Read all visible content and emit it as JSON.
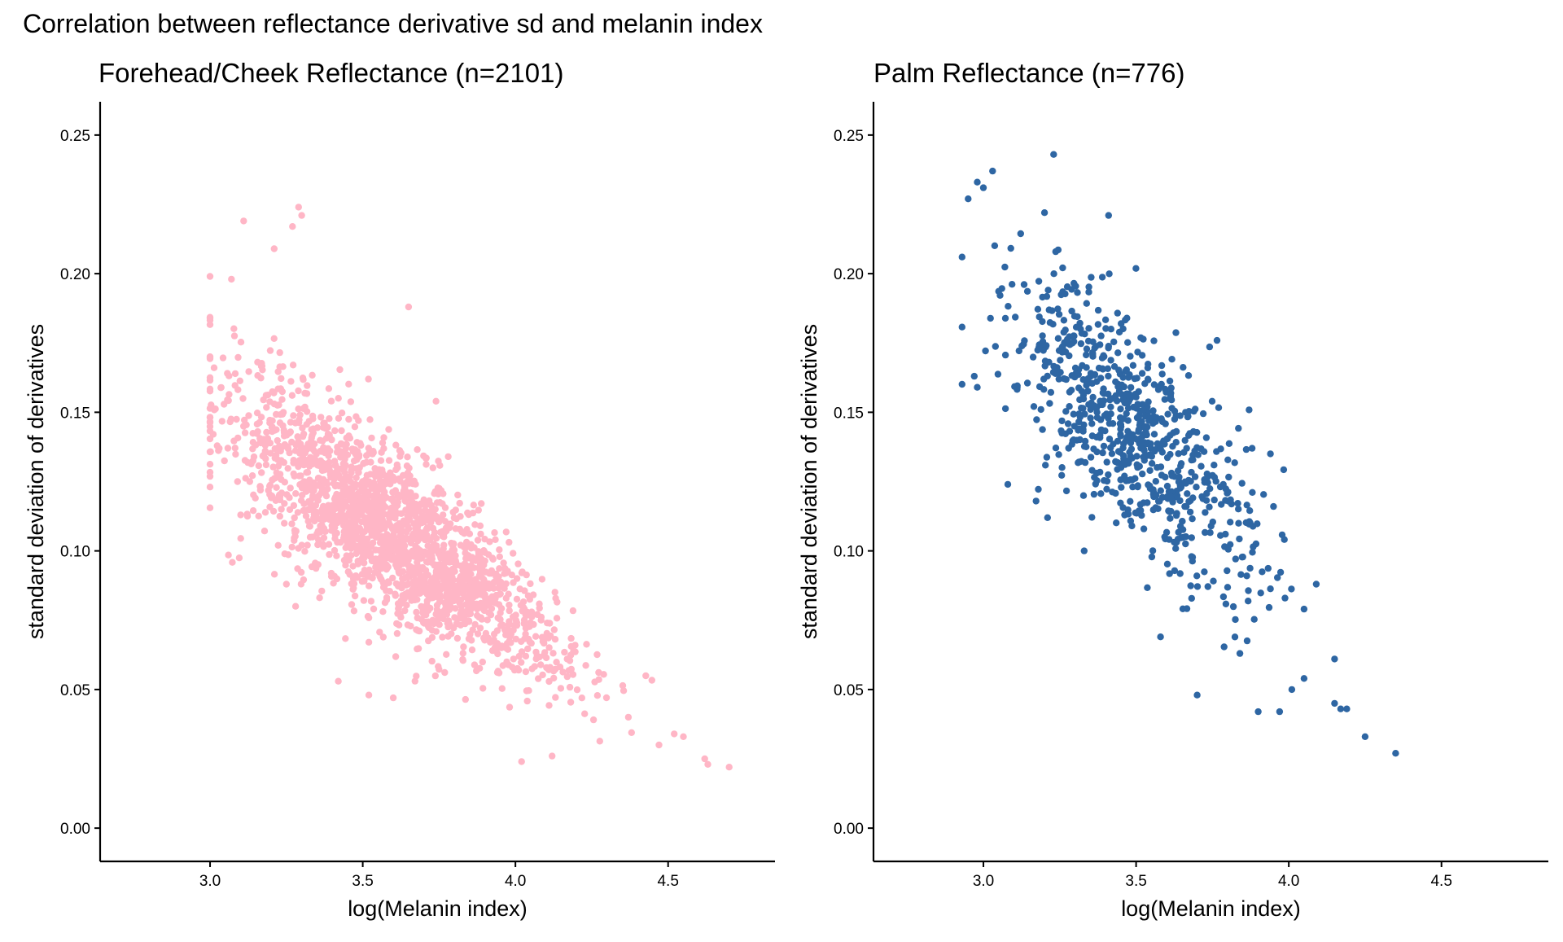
{
  "figure": {
    "title": "Correlation between reflectance derivative sd and melanin index"
  },
  "colors": {
    "forehead_points": "#ffb6c6",
    "palm_points": "#2e66a3",
    "axis": "#000000"
  },
  "chart_data": [
    {
      "type": "scatter",
      "title": "Forehead/Cheek Reflectance (n=2101)",
      "xlabel": "log(Melanin index)",
      "ylabel": "standard deviation of derivatives",
      "xlim": [
        2.64,
        4.85
      ],
      "ylim": [
        -0.012,
        0.262
      ],
      "xticks": [
        "3.0",
        "3.5",
        "4.0",
        "4.5"
      ],
      "yticks": [
        "0.00",
        "0.05",
        "0.10",
        "0.15",
        "0.20",
        "0.25"
      ],
      "grid": false,
      "n": 2101,
      "trend": {
        "slope": -0.078,
        "intercept": 0.387,
        "noise_sd": 0.014
      },
      "x_distribution": {
        "mean": 3.6,
        "sd": 0.27,
        "min": 3.0,
        "max": 4.7
      },
      "points": [
        [
          3.0,
          0.199
        ],
        [
          3.07,
          0.198
        ],
        [
          3.11,
          0.219
        ],
        [
          3.29,
          0.224
        ],
        [
          3.3,
          0.221
        ],
        [
          3.27,
          0.217
        ],
        [
          3.21,
          0.209
        ],
        [
          3.65,
          0.188
        ],
        [
          3.74,
          0.154
        ],
        [
          3.78,
          0.134
        ],
        [
          4.02,
          0.024
        ],
        [
          4.12,
          0.026
        ],
        [
          4.47,
          0.03
        ],
        [
          4.52,
          0.034
        ],
        [
          4.55,
          0.033
        ],
        [
          4.62,
          0.025
        ],
        [
          4.63,
          0.023
        ],
        [
          4.7,
          0.022
        ],
        [
          4.37,
          0.04
        ],
        [
          3.6,
          0.047
        ],
        [
          3.42,
          0.053
        ],
        [
          3.25,
          0.088
        ],
        [
          3.28,
          0.08
        ],
        [
          3.52,
          0.048
        ],
        [
          3.1,
          0.113
        ],
        [
          3.09,
          0.125
        ]
      ]
    },
    {
      "type": "scatter",
      "title": "Palm Reflectance (n=776)",
      "xlabel": "log(Melanin index)",
      "ylabel": "standard deviation of derivatives",
      "xlim": [
        2.64,
        4.85
      ],
      "ylim": [
        -0.012,
        0.262
      ],
      "xticks": [
        "3.0",
        "3.5",
        "4.0",
        "4.5"
      ],
      "yticks": [
        "0.00",
        "0.05",
        "0.10",
        "0.15",
        "0.20",
        "0.25"
      ],
      "grid": false,
      "n": 776,
      "trend": {
        "slope": -0.1,
        "intercept": 0.491,
        "noise_sd": 0.019
      },
      "x_distribution": {
        "mean": 3.5,
        "sd": 0.2,
        "min": 2.93,
        "max": 4.35
      },
      "points": [
        [
          2.93,
          0.206
        ],
        [
          2.95,
          0.227
        ],
        [
          2.98,
          0.233
        ],
        [
          3.0,
          0.231
        ],
        [
          3.03,
          0.237
        ],
        [
          3.23,
          0.243
        ],
        [
          3.2,
          0.222
        ],
        [
          3.41,
          0.221
        ],
        [
          2.97,
          0.163
        ],
        [
          2.98,
          0.159
        ],
        [
          3.08,
          0.124
        ],
        [
          3.21,
          0.112
        ],
        [
          3.33,
          0.1
        ],
        [
          3.58,
          0.069
        ],
        [
          3.7,
          0.048
        ],
        [
          3.84,
          0.063
        ],
        [
          3.9,
          0.042
        ],
        [
          3.97,
          0.042
        ],
        [
          4.01,
          0.05
        ],
        [
          4.05,
          0.054
        ],
        [
          4.15,
          0.061
        ],
        [
          4.15,
          0.045
        ],
        [
          4.17,
          0.043
        ],
        [
          4.19,
          0.043
        ],
        [
          4.25,
          0.033
        ],
        [
          4.35,
          0.027
        ],
        [
          4.09,
          0.088
        ],
        [
          4.05,
          0.079
        ],
        [
          3.94,
          0.135
        ],
        [
          3.88,
          0.137
        ],
        [
          3.95,
          0.116
        ]
      ]
    }
  ]
}
